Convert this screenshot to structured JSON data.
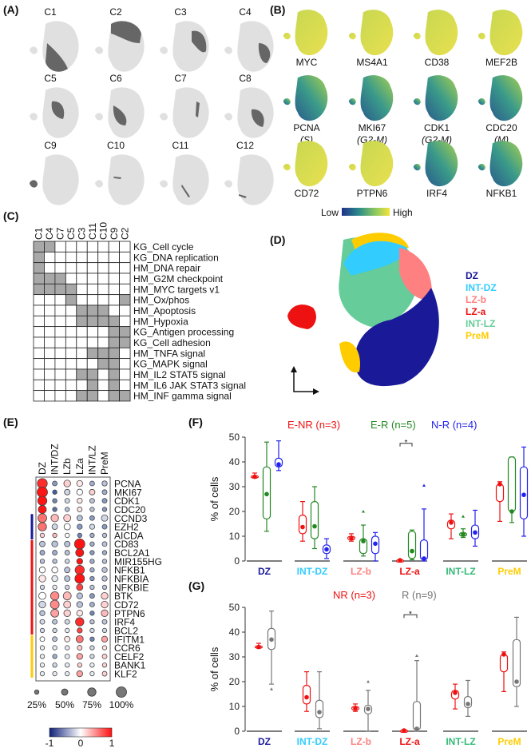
{
  "panels": {
    "A": "(A)",
    "B": "(B)",
    "C": "(C)",
    "D": "(D)",
    "E": "(E)",
    "F": "(F)",
    "G": "(G)"
  },
  "panelA": {
    "clusters": [
      "C1",
      "C2",
      "C3",
      "C4",
      "C5",
      "C6",
      "C7",
      "C8",
      "C9",
      "C10",
      "C11",
      "C12"
    ]
  },
  "panelB": {
    "genes": [
      {
        "name": "MYC",
        "phase": ""
      },
      {
        "name": "MS4A1",
        "phase": ""
      },
      {
        "name": "CD38",
        "phase": ""
      },
      {
        "name": "MEF2B",
        "phase": ""
      },
      {
        "name": "PCNA",
        "phase": "(S)"
      },
      {
        "name": "MKI67",
        "phase": "(G2-M)"
      },
      {
        "name": "CDK1",
        "phase": "(G2-M)"
      },
      {
        "name": "CDC20",
        "phase": "(M)"
      },
      {
        "name": "CD72",
        "phase": ""
      },
      {
        "name": "PTPN6",
        "phase": ""
      },
      {
        "name": "IRF4",
        "phase": ""
      },
      {
        "name": "NFKB1",
        "phase": ""
      }
    ],
    "legend_low": "Low",
    "legend_high": "High"
  },
  "panelC": {
    "columns": [
      "C1",
      "C4",
      "C7",
      "C5",
      "C3",
      "C11",
      "C10",
      "C9",
      "C2"
    ],
    "rows": [
      {
        "label": "KG_Cell cycle",
        "v": [
          1,
          1,
          0,
          0,
          0,
          0,
          0,
          0,
          0
        ]
      },
      {
        "label": "KG_DNA replication",
        "v": [
          1,
          0,
          0,
          0,
          0,
          0,
          0,
          0,
          0
        ]
      },
      {
        "label": "HM_DNA repair",
        "v": [
          1,
          0,
          0,
          0,
          0,
          0,
          0,
          0,
          0
        ]
      },
      {
        "label": "HM_G2M checkpoint",
        "v": [
          1,
          1,
          1,
          0,
          0,
          0,
          0,
          0,
          0
        ]
      },
      {
        "label": "HM_MYC targets v1",
        "v": [
          1,
          1,
          1,
          1,
          0,
          0,
          0,
          0,
          0
        ]
      },
      {
        "label": "HM_Ox/phos",
        "v": [
          0,
          0,
          0,
          1,
          0,
          0,
          0,
          0,
          1
        ]
      },
      {
        "label": "HM_Apoptosis",
        "v": [
          0,
          0,
          0,
          0,
          1,
          1,
          1,
          0,
          0
        ]
      },
      {
        "label": "HM_Hypoxia",
        "v": [
          0,
          0,
          0,
          0,
          1,
          1,
          1,
          1,
          0
        ]
      },
      {
        "label": "KG_Antigen processing",
        "v": [
          0,
          0,
          0,
          0,
          0,
          0,
          0,
          1,
          1
        ]
      },
      {
        "label": "KG_Cell adhesion",
        "v": [
          0,
          0,
          0,
          0,
          0,
          0,
          0,
          1,
          1
        ]
      },
      {
        "label": "HM_TNFA signal",
        "v": [
          0,
          0,
          0,
          0,
          0,
          1,
          1,
          1,
          0
        ]
      },
      {
        "label": "KG_MAPK signal",
        "v": [
          0,
          0,
          0,
          0,
          0,
          0,
          1,
          1,
          0
        ]
      },
      {
        "label": "HM_IL2 STAT5 signal",
        "v": [
          0,
          0,
          0,
          0,
          1,
          1,
          0,
          1,
          0
        ]
      },
      {
        "label": "HM_IL6 JAK STAT3 signal",
        "v": [
          0,
          0,
          0,
          0,
          0,
          1,
          0,
          1,
          0
        ]
      },
      {
        "label": "HM_INF gamma signal",
        "v": [
          0,
          0,
          0,
          0,
          1,
          1,
          0,
          1,
          1
        ]
      }
    ]
  },
  "panelD": {
    "legend": [
      {
        "label": "DZ",
        "color": "#1a1a99"
      },
      {
        "label": "INT-DZ",
        "color": "#33ccff"
      },
      {
        "label": "LZ-b",
        "color": "#ff8080"
      },
      {
        "label": "LZ-a",
        "color": "#ee1111"
      },
      {
        "label": "INT-LZ",
        "color": "#66cc99"
      },
      {
        "label": "PreM",
        "color": "#ffcc00"
      }
    ]
  },
  "chart_data": [
    {
      "type": "dotplot",
      "columns": [
        "DZ",
        "INT/DZ",
        "LZb",
        "LZa",
        "INT/LZ",
        "PreM"
      ],
      "size_legend": [
        "25%",
        "50%",
        "75%",
        "100%"
      ],
      "color_legend": [
        "-1",
        "0",
        "1"
      ],
      "color_range": [
        -1,
        1
      ],
      "rows": [
        {
          "gene": "PCNA",
          "group": "",
          "pct": [
            95,
            30,
            55,
            45,
            30,
            35
          ],
          "z": [
            0.9,
            -0.5,
            0.2,
            0.1,
            -0.4,
            -0.3
          ]
        },
        {
          "gene": "MKI67",
          "group": "",
          "pct": [
            100,
            25,
            40,
            45,
            40,
            30
          ],
          "z": [
            1,
            -0.8,
            -0.2,
            0,
            0.2,
            -0.4
          ]
        },
        {
          "gene": "CDK1",
          "group": "",
          "pct": [
            85,
            25,
            30,
            35,
            30,
            30
          ],
          "z": [
            1,
            -0.6,
            -0.2,
            0.1,
            -0.3,
            -0.5
          ]
        },
        {
          "gene": "CDC20",
          "group": "",
          "pct": [
            70,
            25,
            25,
            30,
            25,
            25
          ],
          "z": [
            1,
            -0.7,
            -0.3,
            0.1,
            -0.3,
            -0.5
          ]
        },
        {
          "gene": "CCND3",
          "group": "blue",
          "pct": [
            80,
            65,
            60,
            40,
            30,
            50
          ],
          "z": [
            0.6,
            0.3,
            0.2,
            -0.3,
            -0.5,
            -0.2
          ]
        },
        {
          "gene": "EZH2",
          "group": "blue",
          "pct": [
            75,
            40,
            50,
            35,
            35,
            30
          ],
          "z": [
            0.6,
            -0.2,
            0,
            -0.5,
            -0.2,
            -0.5
          ]
        },
        {
          "gene": "AICDA",
          "group": "blue",
          "pct": [
            25,
            25,
            25,
            25,
            25,
            25
          ],
          "z": [
            0.2,
            0.3,
            0,
            -0.6,
            -0.4,
            -0.3
          ]
        },
        {
          "gene": "CD83",
          "group": "red",
          "pct": [
            40,
            45,
            40,
            100,
            25,
            30
          ],
          "z": [
            -0.3,
            -0.3,
            -0.3,
            1,
            -0.4,
            -0.3
          ]
        },
        {
          "gene": "BCL2A1",
          "group": "red",
          "pct": [
            30,
            30,
            30,
            70,
            25,
            25
          ],
          "z": [
            -0.4,
            -0.4,
            -0.3,
            1,
            -0.5,
            -0.4
          ]
        },
        {
          "gene": "MIR155HG",
          "group": "red",
          "pct": [
            25,
            25,
            25,
            45,
            25,
            25
          ],
          "z": [
            -0.3,
            -0.3,
            -0.2,
            1,
            -0.4,
            -0.3
          ]
        },
        {
          "gene": "NFKB1",
          "group": "red",
          "pct": [
            45,
            45,
            40,
            85,
            25,
            35
          ],
          "z": [
            0,
            0,
            -0.3,
            0.9,
            -0.4,
            -0.3
          ]
        },
        {
          "gene": "NFKBIA",
          "group": "red",
          "pct": [
            55,
            45,
            40,
            90,
            25,
            35
          ],
          "z": [
            0.1,
            -0.1,
            -0.3,
            1,
            -0.5,
            -0.3
          ]
        },
        {
          "gene": "NFKBIE",
          "group": "red",
          "pct": [
            25,
            25,
            25,
            50,
            25,
            25
          ],
          "z": [
            -0.2,
            -0.1,
            -0.2,
            0.8,
            -0.3,
            -0.3
          ]
        },
        {
          "gene": "BTK",
          "group": "red",
          "pct": [
            60,
            75,
            70,
            45,
            30,
            55
          ],
          "z": [
            0,
            0.5,
            0.3,
            -0.3,
            -0.5,
            0.2
          ]
        },
        {
          "gene": "CD72",
          "group": "red",
          "pct": [
            55,
            80,
            60,
            45,
            30,
            55
          ],
          "z": [
            -0.2,
            0.5,
            0.2,
            -0.3,
            -0.4,
            0.2
          ]
        },
        {
          "gene": "PTPN6",
          "group": "red",
          "pct": [
            35,
            70,
            55,
            45,
            25,
            55
          ],
          "z": [
            -0.3,
            0.4,
            0.2,
            0.1,
            -0.6,
            0.3
          ]
        },
        {
          "gene": "IRF4",
          "group": "red",
          "pct": [
            30,
            30,
            30,
            75,
            25,
            30
          ],
          "z": [
            -0.2,
            -0.3,
            -0.2,
            0.9,
            -0.3,
            -0.3
          ]
        },
        {
          "gene": "BCL2",
          "group": "red",
          "pct": [
            25,
            25,
            25,
            35,
            25,
            25
          ],
          "z": [
            -0.2,
            -0.2,
            -0.1,
            0.8,
            -0.2,
            -0.2
          ]
        },
        {
          "gene": "IFITM1",
          "group": "yellow",
          "pct": [
            30,
            30,
            40,
            60,
            25,
            45
          ],
          "z": [
            0,
            -0.3,
            0.1,
            0.6,
            -0.6,
            0.4
          ]
        },
        {
          "gene": "CCR6",
          "group": "yellow",
          "pct": [
            25,
            25,
            25,
            30,
            25,
            25
          ],
          "z": [
            -0.1,
            -0.1,
            -0.1,
            0.2,
            -0.2,
            0.1
          ]
        },
        {
          "gene": "CELF2",
          "group": "yellow",
          "pct": [
            25,
            25,
            30,
            45,
            25,
            30
          ],
          "z": [
            -0.1,
            -0.4,
            -0.1,
            0.4,
            -0.2,
            0.2
          ]
        },
        {
          "gene": "BANK1",
          "group": "yellow",
          "pct": [
            25,
            25,
            25,
            25,
            25,
            25
          ],
          "z": [
            -0.1,
            -0.2,
            -0.1,
            0.2,
            -0.1,
            0.2
          ]
        },
        {
          "gene": "KLF2",
          "group": "yellow",
          "pct": [
            25,
            25,
            25,
            45,
            25,
            30
          ],
          "z": [
            -0.1,
            -0.1,
            -0.1,
            0.4,
            -0.1,
            0.2
          ]
        }
      ]
    },
    {
      "type": "boxplot",
      "panel": "F",
      "ylabel": "% of cells",
      "ylim": [
        0,
        50
      ],
      "yticks": [
        0,
        10,
        20,
        30,
        40,
        50
      ],
      "categories": [
        {
          "label": "DZ",
          "color": "#1a1a99"
        },
        {
          "label": "INT-DZ",
          "color": "#33ccff"
        },
        {
          "label": "LZ-b",
          "color": "#ff8080"
        },
        {
          "label": "LZ-a",
          "color": "#ee1111"
        },
        {
          "label": "INT-LZ",
          "color": "#33bb77"
        },
        {
          "label": "PreM",
          "color": "#ffcc00"
        }
      ],
      "significance": {
        "category": "LZ-a",
        "label": "*"
      },
      "series": [
        {
          "name": "E-NR (n=3)",
          "color": "#ee1111",
          "boxes": [
            [
              33.5,
              33.5,
              34,
              34.5,
              35.5
            ],
            [
              8,
              11,
              13.7,
              18.5,
              24
            ],
            [
              8,
              8.5,
              9.3,
              10,
              11
            ],
            [
              0,
              0,
              0.3,
              0.5,
              0.6
            ],
            [
              9,
              13,
              15.5,
              16.5,
              19
            ],
            [
              16,
              24,
              31,
              31,
              32
            ]
          ],
          "outliers": [
            [],
            [],
            [],
            [],
            [],
            []
          ]
        },
        {
          "name": "E-R (n=5)",
          "color": "#228822",
          "boxes": [
            [
              12,
              17,
              27,
              38,
              48
            ],
            [
              5,
              9,
              14,
              24,
              30
            ],
            [
              2,
              3,
              8,
              9,
              14.5
            ],
            [
              0.5,
              1,
              4,
              12,
              12.5
            ],
            [
              9.5,
              10,
              10.8,
              11.5,
              13
            ],
            [
              15.5,
              20,
              20,
              42,
              42
            ]
          ],
          "outliers": [
            [],
            [],
            [
              20
            ],
            [],
            [
              18
            ],
            []
          ]
        },
        {
          "name": "N-R (n=4)",
          "color": "#2222ee",
          "boxes": [
            [
              36.5,
              38,
              39,
              41.5,
              48.5
            ],
            [
              1,
              3,
              4.7,
              6.5,
              9
            ],
            [
              0,
              3,
              7,
              10,
              11.5
            ],
            [
              0,
              0.5,
              1,
              8.5,
              21
            ],
            [
              6,
              9,
              11.5,
              14.5,
              20.5
            ],
            [
              10,
              17,
              26.7,
              38,
              46
            ]
          ],
          "outliers": [
            [],
            [],
            [],
            [
              30.5
            ],
            [],
            []
          ]
        }
      ]
    },
    {
      "type": "boxplot",
      "panel": "G",
      "ylabel": "% of cells",
      "ylim": [
        0,
        50
      ],
      "yticks": [
        0,
        10,
        20,
        30,
        40,
        50
      ],
      "categories": [
        {
          "label": "DZ",
          "color": "#1a1a99"
        },
        {
          "label": "INT-DZ",
          "color": "#33ccff"
        },
        {
          "label": "LZ-b",
          "color": "#ff8080"
        },
        {
          "label": "LZ-a",
          "color": "#ee1111"
        },
        {
          "label": "INT-LZ",
          "color": "#33bb77"
        },
        {
          "label": "PreM",
          "color": "#ffcc00"
        }
      ],
      "significance": {
        "category": "LZ-a",
        "label": "*"
      },
      "series": [
        {
          "name": "NR (n=3)",
          "color": "#ee1111",
          "boxes": [
            [
              33.5,
              33.5,
              34,
              34.5,
              35.5
            ],
            [
              8,
              11,
              13.7,
              18.5,
              24
            ],
            [
              8,
              8.5,
              9.3,
              10,
              11
            ],
            [
              0,
              0,
              0.3,
              0.5,
              0.6
            ],
            [
              9,
              13,
              15.5,
              16.5,
              19
            ],
            [
              16,
              24,
              31,
              31,
              32
            ]
          ],
          "outliers": [
            [],
            [],
            [],
            [],
            [],
            []
          ]
        },
        {
          "name": "R (n=9)",
          "color": "#777777",
          "boxes": [
            [
              19,
              33,
              37,
              41.5,
              48.5
            ],
            [
              1,
              5.5,
              7.7,
              12.5,
              24
            ],
            [
              0,
              7,
              9,
              10.5,
              16.5
            ],
            [
              0,
              0.5,
              1,
              12,
              28.5
            ],
            [
              6,
              9.5,
              11,
              14,
              20.5
            ],
            [
              10,
              18,
              20,
              37,
              46
            ]
          ],
          "outliers": [
            [
              17
            ],
            [],
            [
              20
            ],
            [
              30.5
            ],
            [],
            []
          ]
        }
      ]
    }
  ]
}
